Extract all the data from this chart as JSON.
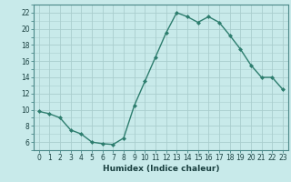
{
  "x": [
    0,
    1,
    2,
    3,
    4,
    5,
    6,
    7,
    8,
    9,
    10,
    11,
    12,
    13,
    14,
    15,
    16,
    17,
    18,
    19,
    20,
    21,
    22,
    23
  ],
  "y": [
    9.8,
    9.5,
    9.0,
    7.5,
    7.0,
    6.0,
    5.8,
    5.7,
    6.5,
    10.5,
    13.5,
    16.5,
    19.5,
    22.0,
    21.5,
    20.8,
    21.5,
    20.8,
    19.2,
    17.5,
    15.5,
    14.0,
    14.0,
    12.5
  ],
  "line_color": "#2d7d6e",
  "marker": "D",
  "marker_size": 2.0,
  "bg_color": "#c8eaea",
  "grid_color_major": "#aacece",
  "grid_color_minor": "#bcd8d8",
  "xlabel": "Humidex (Indice chaleur)",
  "xlim": [
    -0.5,
    23.5
  ],
  "ylim": [
    5,
    23
  ],
  "yticks": [
    6,
    8,
    10,
    12,
    14,
    16,
    18,
    20,
    22
  ],
  "xticks": [
    0,
    1,
    2,
    3,
    4,
    5,
    6,
    7,
    8,
    9,
    10,
    11,
    12,
    13,
    14,
    15,
    16,
    17,
    18,
    19,
    20,
    21,
    22,
    23
  ],
  "xlabel_fontsize": 6.5,
  "tick_fontsize": 5.5,
  "line_width": 1.0,
  "spine_color": "#4a8888",
  "label_color": "#1a4040"
}
